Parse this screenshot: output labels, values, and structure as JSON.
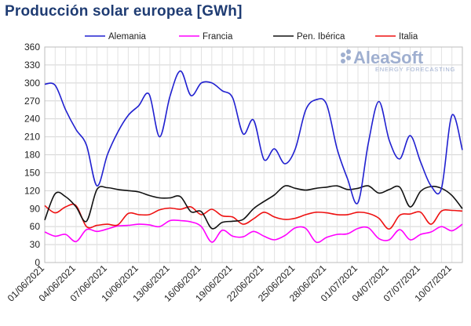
{
  "title": "Producción solar europea [GWh]",
  "logo": {
    "name": "AleaSoft",
    "tagline": "ENERGY FORECASTING"
  },
  "chart_data": {
    "type": "line",
    "ylabel": "",
    "xlabel": "",
    "ylim": [
      0,
      360
    ],
    "yticks": [
      0,
      30,
      60,
      90,
      120,
      150,
      180,
      210,
      240,
      270,
      300,
      330,
      360
    ],
    "grid": true,
    "legend_position": "top",
    "x_start": "01/06/2021",
    "x_end": "14/07/2021",
    "xtick_labels": [
      "01/06/2021",
      "04/06/2021",
      "07/06/2021",
      "10/06/2021",
      "13/06/2021",
      "16/06/2021",
      "19/06/2021",
      "22/06/2021",
      "25/06/2021",
      "28/06/2021",
      "01/07/2021",
      "04/07/2021",
      "07/07/2021",
      "10/07/2021"
    ],
    "series": [
      {
        "name": "Alemania",
        "color": "#2020d0",
        "values": [
          298,
          296,
          255,
          222,
          196,
          128,
          180,
          218,
          246,
          262,
          281,
          210,
          278,
          320,
          279,
          300,
          300,
          287,
          275,
          215,
          238,
          172,
          190,
          165,
          190,
          255,
          272,
          264,
          190,
          140,
          100,
          200,
          269,
          204,
          173,
          212,
          168,
          128,
          124,
          246,
          188
        ]
      },
      {
        "name": "Francia",
        "color": "#ff00ff",
        "values": [
          51,
          44,
          47,
          35,
          55,
          52,
          56,
          61,
          62,
          64,
          63,
          60,
          70,
          70,
          68,
          60,
          34,
          54,
          44,
          43,
          52,
          44,
          38,
          45,
          58,
          57,
          34,
          42,
          47,
          48,
          57,
          58,
          40,
          38,
          55,
          38,
          47,
          51,
          60,
          53,
          64
        ]
      },
      {
        "name": "Pen. Ibérica",
        "color": "#111111",
        "values": [
          71,
          115,
          110,
          93,
          69,
          122,
          125,
          122,
          120,
          118,
          112,
          108,
          108,
          110,
          85,
          85,
          57,
          67,
          69,
          72,
          90,
          102,
          113,
          128,
          124,
          121,
          124,
          126,
          128,
          122,
          124,
          128,
          116,
          122,
          126,
          93,
          119,
          127,
          124,
          112,
          90
        ]
      },
      {
        "name": "Italia",
        "color": "#ee1111",
        "values": [
          95,
          83,
          93,
          95,
          60,
          62,
          64,
          63,
          82,
          80,
          80,
          88,
          91,
          89,
          93,
          80,
          89,
          78,
          76,
          64,
          73,
          84,
          76,
          72,
          74,
          80,
          84,
          83,
          80,
          80,
          84,
          82,
          74,
          56,
          79,
          81,
          84,
          64,
          86,
          87,
          86
        ]
      }
    ]
  }
}
